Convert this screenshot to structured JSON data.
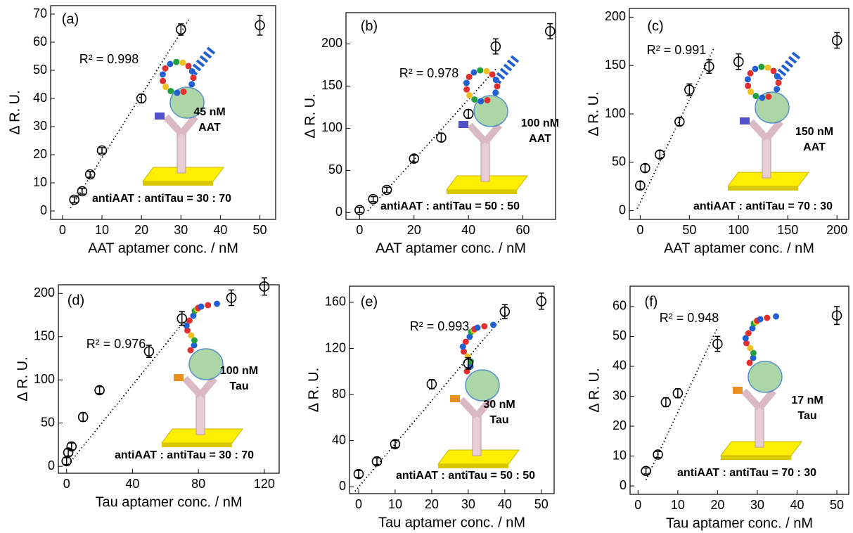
{
  "chart_data": [
    {
      "type": "scatter",
      "panel_label": "(a)",
      "xlabel": "AAT aptamer conc. / nM",
      "ylabel": "Δ R. U.",
      "x": [
        3,
        5,
        7,
        10,
        20,
        30,
        50
      ],
      "values": [
        4,
        7,
        13,
        21.5,
        40,
        64.5,
        66
      ],
      "errors": [
        1,
        1,
        1,
        1,
        1.5,
        2,
        3.5
      ],
      "xlim": [
        -3,
        54
      ],
      "ylim": [
        -3,
        73
      ],
      "xticks": [
        0,
        10,
        20,
        30,
        40,
        50
      ],
      "yticks": [
        0,
        10,
        20,
        30,
        40,
        50,
        60,
        70
      ],
      "fit_x": [
        2,
        32
      ],
      "fit_y": [
        1,
        68
      ],
      "r2_label": "R² = 0.998",
      "conc_label": "45 nM",
      "analyte": "AAT",
      "ratio_label": "antiAAT : antiTau = 30 : 70"
    },
    {
      "type": "scatter",
      "panel_label": "(b)",
      "xlabel": "AAT aptamer conc. / nM",
      "ylabel": "Δ R. U.",
      "x": [
        0,
        5,
        10,
        20,
        30,
        40,
        50,
        70
      ],
      "values": [
        3,
        16,
        27,
        64,
        89,
        117,
        197,
        215
      ],
      "errors": [
        3,
        3,
        3,
        4,
        5,
        5,
        9,
        9
      ],
      "xlim": [
        -5,
        72
      ],
      "ylim": [
        -8,
        237
      ],
      "xticks": [
        0,
        20,
        40,
        60
      ],
      "yticks": [
        0,
        50,
        100,
        150,
        200
      ],
      "fit_x": [
        3,
        50
      ],
      "fit_y": [
        2,
        170
      ],
      "r2_label": "R² = 0.978",
      "conc_label": "100 nM",
      "analyte": "AAT",
      "ratio_label": "antiAAT : antiTau = 50 : 50"
    },
    {
      "type": "scatter",
      "panel_label": "(c)",
      "xlabel": "AAT aptamer conc. / nM",
      "ylabel": "Δ R. U.",
      "x": [
        0,
        5,
        20,
        40,
        50,
        70,
        100,
        200
      ],
      "values": [
        26,
        44,
        58,
        92,
        125,
        149,
        154,
        176
      ],
      "errors": [
        4,
        4,
        4,
        4,
        6,
        7,
        8,
        8
      ],
      "xlim": [
        -11,
        212
      ],
      "ylim": [
        -9,
        209
      ],
      "xticks": [
        0,
        50,
        100,
        150,
        200
      ],
      "yticks": [
        0,
        50,
        100,
        150,
        200
      ],
      "fit_x": [
        -3,
        75
      ],
      "fit_y": [
        2,
        168
      ],
      "r2_label": "R² = 0.991",
      "conc_label": "150 nM",
      "analyte": "AAT",
      "ratio_label": "antiAAT : antiTau = 70 : 30"
    },
    {
      "type": "scatter",
      "panel_label": "(d)",
      "xlabel": "Tau aptamer conc. / nM",
      "ylabel": "Δ R. U.",
      "x": [
        0,
        1,
        3,
        10,
        20,
        50,
        70,
        100,
        120
      ],
      "values": [
        6,
        16,
        23,
        57,
        88,
        133,
        171,
        195,
        208
      ],
      "errors": [
        4,
        4,
        4,
        5,
        4,
        7,
        8,
        9,
        10
      ],
      "xlim": [
        -5,
        129
      ],
      "ylim": [
        -8,
        210
      ],
      "xticks": [
        0,
        40,
        80,
        120
      ],
      "yticks": [
        0,
        50,
        100,
        150,
        200
      ],
      "fit_x": [
        1,
        71
      ],
      "fit_y": [
        2,
        167
      ],
      "r2_label": "R² = 0.976",
      "conc_label": "100 nM",
      "analyte": "Tau",
      "ratio_label": "antiAAT : antiTau = 30 : 70"
    },
    {
      "type": "scatter",
      "panel_label": "(e)",
      "xlabel": "Tau aptamer conc. / nM",
      "ylabel": "Δ R. U.",
      "x": [
        0,
        5,
        10,
        20,
        30,
        40,
        50
      ],
      "values": [
        11,
        22,
        37,
        89,
        107,
        152,
        161
      ],
      "errors": [
        3,
        3,
        3,
        4,
        5,
        6,
        7
      ],
      "xlim": [
        -2.5,
        53.5
      ],
      "ylim": [
        -6,
        174
      ],
      "xticks": [
        0,
        10,
        20,
        30,
        40,
        50
      ],
      "yticks": [
        0,
        40,
        80,
        120,
        160
      ],
      "fit_x": [
        -1,
        40.4
      ],
      "fit_y": [
        -4,
        151
      ],
      "r2_label": "R² = 0.993",
      "conc_label": "30 nM",
      "analyte": "Tau",
      "ratio_label": "antiAAT : antiTau = 50 : 50"
    },
    {
      "type": "scatter",
      "panel_label": "(f)",
      "xlabel": "Tau aptamer conc. / nM",
      "ylabel": "Δ R. U.",
      "x": [
        2,
        5,
        7,
        10,
        20,
        50
      ],
      "values": [
        5,
        10.5,
        28,
        31,
        47.5,
        57
      ],
      "errors": [
        1,
        1,
        1.5,
        1.5,
        2.5,
        3
      ],
      "xlim": [
        -2,
        53
      ],
      "ylim": [
        -2.8,
        66.8
      ],
      "xticks": [
        0,
        10,
        20,
        30,
        40,
        50
      ],
      "yticks": [
        0,
        10,
        20,
        30,
        40,
        50,
        60
      ],
      "fit_x": [
        2,
        20
      ],
      "fit_y": [
        2,
        53
      ],
      "r2_label": "R² = 0.948",
      "conc_label": "17 nM",
      "analyte": "Tau",
      "ratio_label": "antiAAT : antiTau = 70 : 30"
    }
  ]
}
